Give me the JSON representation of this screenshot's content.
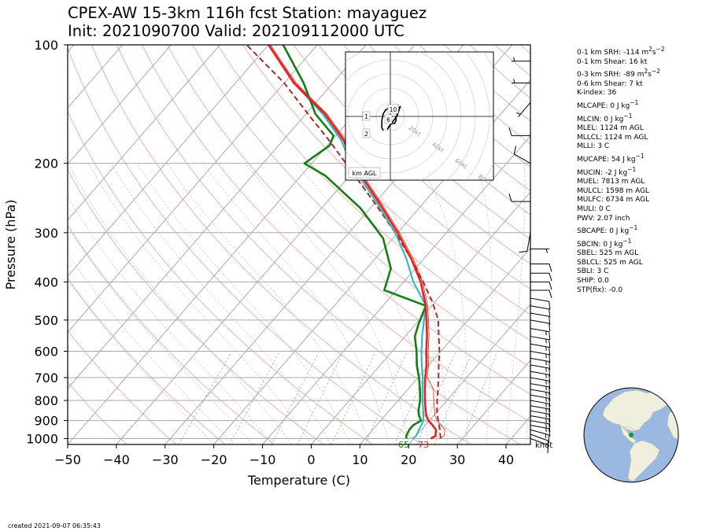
{
  "header": {
    "title_line1": "CPEX-AW 15-3km  116h fcst  Station: mayaguez",
    "title_line2": "Init: 2021090700  Valid: 202109112000 UTC"
  },
  "footer": {
    "created": "created 2021-09-07 06:35:43"
  },
  "colors": {
    "temperature": "#e8201a",
    "virtual_temperature": "#e8201a",
    "dewpoint": "#128012",
    "wetbulb": "#2ab4c8",
    "parcel": "#a52a2a",
    "isotherm": "#aaaaaa",
    "dry_adiabat": "#f2b2aa",
    "moist_adiabat": "#c8c8c8",
    "mixing_ratio": "#7cc47c"
  },
  "chart_data": {
    "type": "skew-t",
    "xlabel": "Temperature (C)",
    "ylabel": "Pressure (hPa)",
    "xlim": [
      -50,
      45
    ],
    "ylim": [
      1035,
      100
    ],
    "y_scale": "log",
    "x_ticks": [
      "−50",
      "−40",
      "−30",
      "−20",
      "−10",
      "0",
      "10",
      "20",
      "30",
      "40"
    ],
    "x_tick_values": [
      -50,
      -40,
      -30,
      -20,
      -10,
      0,
      10,
      20,
      30,
      40
    ],
    "y_ticks": [
      "100",
      "200",
      "300",
      "400",
      "500",
      "600",
      "700",
      "800",
      "900",
      "1000"
    ],
    "y_tick_values": [
      100,
      200,
      300,
      400,
      500,
      600,
      700,
      800,
      900,
      1000
    ],
    "surface_labels": {
      "dewpoint": "65",
      "temperature": "73"
    },
    "temperature": [
      {
        "p": 1000,
        "t": 23.5
      },
      {
        "p": 985,
        "t": 24.0
      },
      {
        "p": 950,
        "t": 23.0
      },
      {
        "p": 925,
        "t": 21.5
      },
      {
        "p": 900,
        "t": 19.8
      },
      {
        "p": 875,
        "t": 18.5
      },
      {
        "p": 850,
        "t": 17.5
      },
      {
        "p": 800,
        "t": 15.5
      },
      {
        "p": 750,
        "t": 13.5
      },
      {
        "p": 700,
        "t": 11.5
      },
      {
        "p": 650,
        "t": 9.5
      },
      {
        "p": 600,
        "t": 7.0
      },
      {
        "p": 550,
        "t": 4.5
      },
      {
        "p": 500,
        "t": 1.5
      },
      {
        "p": 460,
        "t": -1.2
      },
      {
        "p": 400,
        "t": -6.5
      },
      {
        "p": 350,
        "t": -12.5
      },
      {
        "p": 300,
        "t": -20.0
      },
      {
        "p": 250,
        "t": -29.5
      },
      {
        "p": 200,
        "t": -41.5
      },
      {
        "p": 175,
        "t": -47.5
      },
      {
        "p": 150,
        "t": -56.0
      },
      {
        "p": 125,
        "t": -68.0
      },
      {
        "p": 100,
        "t": -80.0
      }
    ],
    "dewpoint": [
      {
        "p": 1000,
        "t": 18.5
      },
      {
        "p": 985,
        "t": 18.0
      },
      {
        "p": 950,
        "t": 17.5
      },
      {
        "p": 925,
        "t": 17.5
      },
      {
        "p": 900,
        "t": 18.3
      },
      {
        "p": 875,
        "t": 17.0
      },
      {
        "p": 850,
        "t": 16.0
      },
      {
        "p": 800,
        "t": 14.5
      },
      {
        "p": 750,
        "t": 12.5
      },
      {
        "p": 700,
        "t": 10.2
      },
      {
        "p": 650,
        "t": 7.5
      },
      {
        "p": 600,
        "t": 5.0
      },
      {
        "p": 550,
        "t": 2.0
      },
      {
        "p": 510,
        "t": 0.5
      },
      {
        "p": 460,
        "t": -1.2
      },
      {
        "p": 420,
        "t": -12.5
      },
      {
        "p": 370,
        "t": -15.0
      },
      {
        "p": 310,
        "t": -22.0
      },
      {
        "p": 260,
        "t": -32.0
      },
      {
        "p": 215,
        "t": -45.0
      },
      {
        "p": 200,
        "t": -51.5
      },
      {
        "p": 180,
        "t": -49.5
      },
      {
        "p": 170,
        "t": -50.5
      },
      {
        "p": 150,
        "t": -58.0
      },
      {
        "p": 125,
        "t": -66.0
      },
      {
        "p": 100,
        "t": -77.0
      }
    ],
    "wetbulb": [
      {
        "p": 1000,
        "t": 19.8
      },
      {
        "p": 985,
        "t": 20.0
      },
      {
        "p": 950,
        "t": 19.5
      },
      {
        "p": 900,
        "t": 18.8
      },
      {
        "p": 850,
        "t": 17.0
      },
      {
        "p": 800,
        "t": 15.0
      },
      {
        "p": 750,
        "t": 13.0
      },
      {
        "p": 700,
        "t": 11.0
      },
      {
        "p": 650,
        "t": 8.5
      },
      {
        "p": 600,
        "t": 6.0
      },
      {
        "p": 550,
        "t": 3.5
      },
      {
        "p": 500,
        "t": 1.0
      },
      {
        "p": 460,
        "t": -1.2
      },
      {
        "p": 400,
        "t": -8.0
      },
      {
        "p": 350,
        "t": -13.5
      },
      {
        "p": 300,
        "t": -20.5
      },
      {
        "p": 250,
        "t": -30.0
      },
      {
        "p": 200,
        "t": -42.0
      },
      {
        "p": 175,
        "t": -48.0
      },
      {
        "p": 150,
        "t": -56.5
      },
      {
        "p": 125,
        "t": -68.0
      },
      {
        "p": 100,
        "t": -80.0
      }
    ],
    "parcel": [
      {
        "p": 1000,
        "t": 25.5
      },
      {
        "p": 985,
        "t": 25.0
      },
      {
        "p": 950,
        "t": 23.8
      },
      {
        "p": 900,
        "t": 21.8
      },
      {
        "p": 850,
        "t": 19.8
      },
      {
        "p": 800,
        "t": 18.0
      },
      {
        "p": 750,
        "t": 16.2
      },
      {
        "p": 700,
        "t": 14.2
      },
      {
        "p": 650,
        "t": 12.0
      },
      {
        "p": 600,
        "t": 9.7
      },
      {
        "p": 550,
        "t": 6.9
      },
      {
        "p": 500,
        "t": 3.9
      },
      {
        "p": 450,
        "t": -0.5
      },
      {
        "p": 400,
        "t": -6.0
      },
      {
        "p": 350,
        "t": -12.5
      },
      {
        "p": 300,
        "t": -20.5
      },
      {
        "p": 250,
        "t": -30.5
      },
      {
        "p": 200,
        "t": -43.0
      },
      {
        "p": 175,
        "t": -50.5
      },
      {
        "p": 150,
        "t": -59.5
      },
      {
        "p": 125,
        "t": -70.0
      },
      {
        "p": 100,
        "t": -84.5
      }
    ],
    "wind_barbs": [
      {
        "p": 1000,
        "dir": 110,
        "spd": 10
      },
      {
        "p": 975,
        "dir": 110,
        "spd": 12
      },
      {
        "p": 950,
        "dir": 105,
        "spd": 15
      },
      {
        "p": 925,
        "dir": 100,
        "spd": 15
      },
      {
        "p": 900,
        "dir": 100,
        "spd": 15
      },
      {
        "p": 875,
        "dir": 100,
        "spd": 15
      },
      {
        "p": 850,
        "dir": 100,
        "spd": 15
      },
      {
        "p": 825,
        "dir": 100,
        "spd": 15
      },
      {
        "p": 800,
        "dir": 100,
        "spd": 15
      },
      {
        "p": 775,
        "dir": 100,
        "spd": 15
      },
      {
        "p": 750,
        "dir": 100,
        "spd": 15
      },
      {
        "p": 725,
        "dir": 100,
        "spd": 15
      },
      {
        "p": 700,
        "dir": 100,
        "spd": 15
      },
      {
        "p": 675,
        "dir": 100,
        "spd": 15
      },
      {
        "p": 650,
        "dir": 100,
        "spd": 15
      },
      {
        "p": 625,
        "dir": 100,
        "spd": 15
      },
      {
        "p": 600,
        "dir": 100,
        "spd": 15
      },
      {
        "p": 575,
        "dir": 100,
        "spd": 15
      },
      {
        "p": 550,
        "dir": 100,
        "spd": 15
      },
      {
        "p": 525,
        "dir": 100,
        "spd": 15
      },
      {
        "p": 500,
        "dir": 100,
        "spd": 10
      },
      {
        "p": 480,
        "dir": 100,
        "spd": 10
      },
      {
        "p": 460,
        "dir": 100,
        "spd": 10
      },
      {
        "p": 440,
        "dir": 100,
        "spd": 10
      },
      {
        "p": 420,
        "dir": 90,
        "spd": 10
      },
      {
        "p": 400,
        "dir": 90,
        "spd": 10
      },
      {
        "p": 380,
        "dir": 90,
        "spd": 10
      },
      {
        "p": 360,
        "dir": 90,
        "spd": 10
      },
      {
        "p": 330,
        "dir": 90,
        "spd": 5
      },
      {
        "p": 300,
        "dir": 190,
        "spd": 10
      },
      {
        "p": 250,
        "dir": 270,
        "spd": 10
      },
      {
        "p": 200,
        "dir": 300,
        "spd": 10
      },
      {
        "p": 170,
        "dir": 270,
        "spd": 10
      },
      {
        "p": 140,
        "dir": 220,
        "spd": 5
      },
      {
        "p": 125,
        "dir": 270,
        "spd": 5
      },
      {
        "p": 110,
        "dir": 270,
        "spd": 5
      }
    ],
    "wind_unit": "knot",
    "hodograph": {
      "ring_labels": [
        "20kt",
        "40kt",
        "60kt",
        "80kt"
      ],
      "ring_values": [
        20,
        40,
        60,
        80
      ],
      "height_labels": [
        "1",
        "2",
        "6",
        "10"
      ],
      "legend": "km AGL",
      "points": [
        {
          "u": -5,
          "v": -10
        },
        {
          "u": -6,
          "v": -8
        },
        {
          "u": -6,
          "v": -3
        },
        {
          "u": -5,
          "v": 2
        },
        {
          "u": -3,
          "v": 5
        },
        {
          "u": 1,
          "v": 6
        },
        {
          "u": 4,
          "v": 5
        },
        {
          "u": 5,
          "v": 2
        },
        {
          "u": 4,
          "v": -1
        },
        {
          "u": 4,
          "v": -3
        },
        {
          "u": 3,
          "v": -5
        },
        {
          "u": 1,
          "v": -5
        },
        {
          "u": -1,
          "v": -7
        },
        {
          "u": -2,
          "v": -9
        },
        {
          "u": 0,
          "v": -6
        },
        {
          "u": 3,
          "v": -2
        },
        {
          "u": 5,
          "v": 1
        },
        {
          "u": 6,
          "v": 4
        },
        {
          "u": 7,
          "v": 7
        },
        {
          "u": 6,
          "v": 6
        }
      ]
    }
  },
  "indices": [
    {
      "html": "0-1 km SRH: -114 m<sup>2</sup>s<sup>−2</sup>"
    },
    {
      "html": "0-1 km Shear: 16 kt"
    },
    {
      "html": "0-3 km SRH: -89 m<sup>2</sup>s<sup>−2</sup>"
    },
    {
      "html": "0-6 km Shear: 7 kt"
    },
    {
      "html": "K-index: 36"
    },
    {
      "html": "MLCAPE: 0 J kg<sup>−1</sup>"
    },
    {
      "html": "MLCIN: 0 J kg<sup>−1</sup>"
    },
    {
      "html": "MLEL: 1124 m AGL"
    },
    {
      "html": "MLLCL: 1124 m AGL"
    },
    {
      "html": "MLLI: 3 C"
    },
    {
      "html": "MUCAPE: 54 J kg<sup>−1</sup>"
    },
    {
      "html": "MUCIN: -2 J kg<sup>−1</sup>"
    },
    {
      "html": "MUEL: 7813 m AGL"
    },
    {
      "html": "MULCL: 1598 m AGL"
    },
    {
      "html": "MULFC: 6734 m AGL"
    },
    {
      "html": "MULI: 0 C"
    },
    {
      "html": "PWV: 2.07 inch"
    },
    {
      "html": "SBCAPE: 0 J kg<sup>−1</sup>"
    },
    {
      "html": "SBCIN: 0 J kg<sup>−1</sup>"
    },
    {
      "html": "SBEL: 525 m AGL"
    },
    {
      "html": "SBLCL: 525 m AGL"
    },
    {
      "html": "SBLI: 3 C"
    },
    {
      "html": "SHIP: 0.0"
    },
    {
      "html": "STP(fix): -0.0"
    }
  ],
  "globe": {
    "ocean": "#9ab8e0",
    "land": "#f0eedc",
    "station": "#1a9a1a"
  }
}
